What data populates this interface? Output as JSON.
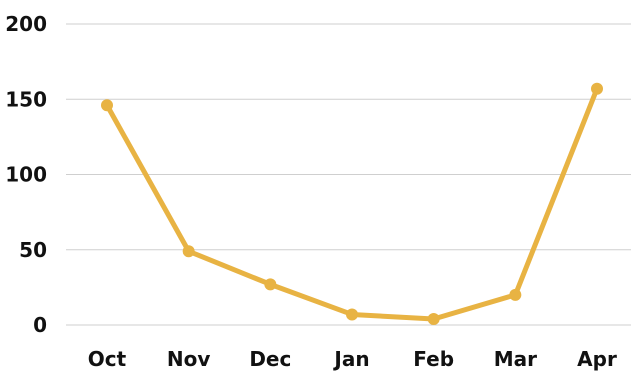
{
  "chart_data": {
    "type": "line",
    "categories": [
      "Oct",
      "Nov",
      "Dec",
      "Jan",
      "Feb",
      "Mar",
      "Apr"
    ],
    "series": [
      {
        "values": [
          146,
          49,
          27,
          7,
          4,
          20,
          157
        ]
      }
    ],
    "title": "",
    "xlabel": "",
    "ylabel": "",
    "ylim": [
      0,
      200
    ],
    "yticks": [
      0,
      50,
      100,
      150,
      200
    ],
    "grid": true,
    "legend": "none"
  },
  "colors": {
    "series": "#e8b343",
    "grid": "#cfcfcf",
    "text": "#111111"
  }
}
